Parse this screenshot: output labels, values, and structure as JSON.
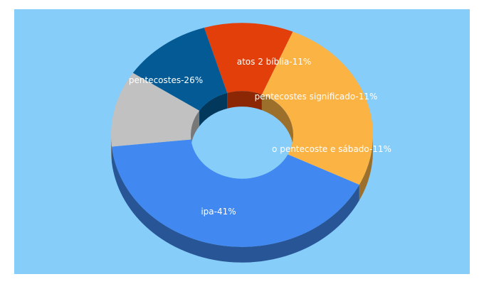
{
  "chart_data": {
    "type": "pie",
    "style": "3d-donut",
    "categories": [
      "ipa",
      "pentecostes",
      "atos 2 bíblia",
      "pentecostes significado",
      "o pentecoste e sábado"
    ],
    "values": [
      41,
      26,
      11,
      11,
      11
    ],
    "labels": [
      "ipa-41%",
      "pentecostes-26%",
      "atos 2 bíblia-11%",
      "pentecostes significado-11%",
      "o pentecoste e sábado-11%"
    ],
    "colors": [
      "#4189f0",
      "#fbb343",
      "#e23f0a",
      "#045a94",
      "#c1c1c1"
    ],
    "background": "#87cdfa",
    "legend": "none"
  }
}
